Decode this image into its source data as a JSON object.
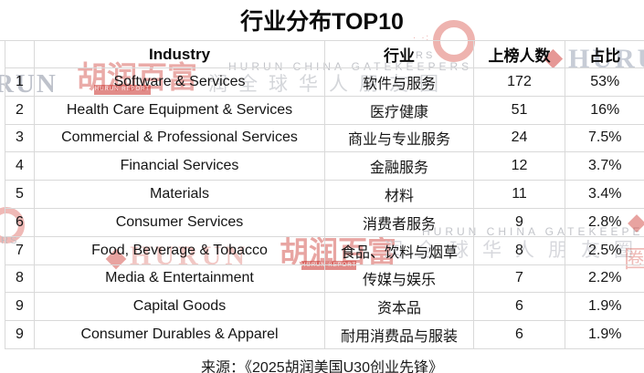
{
  "title": "行业分布TOP10",
  "source": "来源：《2025胡润美国U30创业先锋》",
  "table": {
    "headers": {
      "rank": "",
      "industry_en": "Industry",
      "industry_cn": "行业",
      "count": "上榜人数",
      "share": "占比"
    },
    "rows": [
      {
        "rank": "1",
        "industry_en": "Software & Services",
        "industry_cn": "软件与服务",
        "count": "172",
        "share": "53%"
      },
      {
        "rank": "2",
        "industry_en": "Health Care Equipment & Services",
        "industry_cn": "医疗健康",
        "count": "51",
        "share": "16%"
      },
      {
        "rank": "3",
        "industry_en": "Commercial & Professional Services",
        "industry_cn": "商业与专业服务",
        "count": "24",
        "share": "7.5%"
      },
      {
        "rank": "4",
        "industry_en": "Financial Services",
        "industry_cn": "金融服务",
        "count": "12",
        "share": "3.7%"
      },
      {
        "rank": "5",
        "industry_en": "Materials",
        "industry_cn": "材料",
        "count": "11",
        "share": "3.4%"
      },
      {
        "rank": "6",
        "industry_en": "Consumer Services",
        "industry_cn": "消费者服务",
        "count": "9",
        "share": "2.8%"
      },
      {
        "rank": "7",
        "industry_en": "Food, Beverage & Tobacco",
        "industry_cn": "食品、饮料与烟草",
        "count": "8",
        "share": "2.5%"
      },
      {
        "rank": "8",
        "industry_en": "Media & Entertainment",
        "industry_cn": "传媒与娱乐",
        "count": "7",
        "share": "2.2%"
      },
      {
        "rank": "9",
        "industry_en": "Capital Goods",
        "industry_cn": "资本品",
        "count": "6",
        "share": "1.9%"
      },
      {
        "rank": "9",
        "industry_en": "Consumer Durables & Apparel",
        "industry_cn": "耐用消费品与服装",
        "count": "6",
        "share": "1.9%"
      }
    ]
  },
  "watermarks": {
    "run_partial": "RUN",
    "huru_partial": "HURU",
    "hurun_en": "HURUN",
    "hurun_baifu": "胡润百富",
    "hurun_report_banner": "HURUN REPORT",
    "gatekeepers": "HURUN CHINA GATEKEEPERS",
    "friends_circle_partial_1": "润全球华人朋友圈",
    "friends_circle_partial_2": "润全球华人朋友圈",
    "quan": "圈",
    "rs_partial": "RS",
    "dots": "· ·:"
  },
  "colors": {
    "border": "#d9d9d9",
    "text": "#111111",
    "watermark_red": "#cd3730",
    "watermark_gray": "#b7bac0"
  },
  "chart_data": {
    "type": "table",
    "title": "行业分布TOP10",
    "columns": [
      "",
      "Industry",
      "行业",
      "上榜人数",
      "占比"
    ],
    "rows": [
      [
        1,
        "Software & Services",
        "软件与服务",
        172,
        "53%"
      ],
      [
        2,
        "Health Care Equipment & Services",
        "医疗健康",
        51,
        "16%"
      ],
      [
        3,
        "Commercial & Professional Services",
        "商业与专业服务",
        24,
        "7.5%"
      ],
      [
        4,
        "Financial Services",
        "金融服务",
        12,
        "3.7%"
      ],
      [
        5,
        "Materials",
        "材料",
        11,
        "3.4%"
      ],
      [
        6,
        "Consumer Services",
        "消费者服务",
        9,
        "2.8%"
      ],
      [
        7,
        "Food, Beverage & Tobacco",
        "食品、饮料与烟草",
        8,
        "2.5%"
      ],
      [
        8,
        "Media & Entertainment",
        "传媒与娱乐",
        7,
        "2.2%"
      ],
      [
        9,
        "Capital Goods",
        "资本品",
        6,
        "1.9%"
      ],
      [
        9,
        "Consumer Durables & Apparel",
        "耐用消费品与服装",
        6,
        "1.9%"
      ]
    ],
    "source": "来源：《2025胡润美国U30创业先锋》"
  }
}
